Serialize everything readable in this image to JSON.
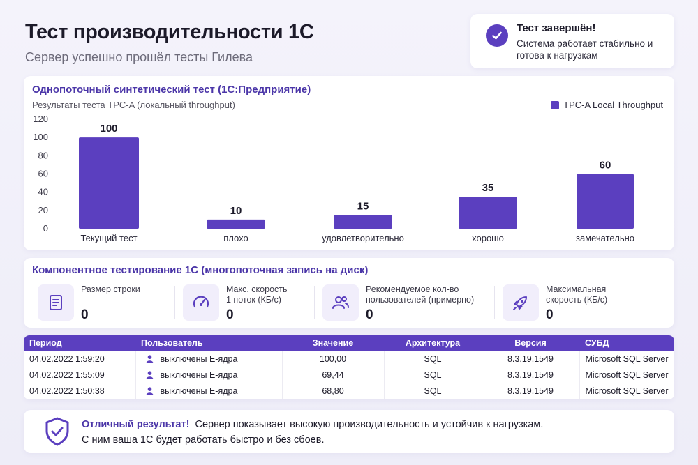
{
  "header": {
    "title": "Тест производительности 1С",
    "subtitle": "Сервер успешно прошёл тесты Гилева"
  },
  "status": {
    "title": "Тест завершён!",
    "text": "Система работает стабильно и готова к нагрузкам",
    "icon": "check-circle-icon"
  },
  "chart_section": {
    "title": "Однопоточный синтетический тест (1С:Предприятие)",
    "subtitle": "Результаты теста TPC-A (локальный throughput)"
  },
  "chart_data": {
    "type": "bar",
    "categories": [
      "Текущий тест",
      "плохо",
      "удовлетворительно",
      "хорошо",
      "замечательно"
    ],
    "series": [
      {
        "name": "TPC-A Local Throughput",
        "values": [
          100,
          10,
          15,
          35,
          60
        ]
      }
    ],
    "ylim": [
      0,
      120
    ],
    "yticks": [
      0,
      20,
      40,
      60,
      80,
      100,
      120
    ],
    "legend": "top-right",
    "color": "#5b3fbf",
    "grid": false
  },
  "component": {
    "title": "Компонентное тестирование 1С (многопоточная запись на диск)",
    "metrics": [
      {
        "icon": "document-icon",
        "label1": "Размер строки",
        "label2": "",
        "value": "0"
      },
      {
        "icon": "speedometer-icon",
        "label1": "Макс. скорость",
        "label2": "1 поток (КБ/с)",
        "value": "0"
      },
      {
        "icon": "users-icon",
        "label1": "Рекомендуемое кол-во",
        "label2": "пользователей (примерно)",
        "value": "0"
      },
      {
        "icon": "rocket-icon",
        "label1": "Максимальная",
        "label2": "скорость (КБ/с)",
        "value": "0"
      }
    ]
  },
  "table": {
    "headers": [
      "Период",
      "Пользователь",
      "Значение",
      "Архитектура",
      "Версия",
      "СУБД"
    ],
    "rows": [
      [
        "04.02.2022 1:59:20",
        "выключены Е-ядра",
        "100,00",
        "SQL",
        "8.3.19.1549",
        "Microsoft SQL Server"
      ],
      [
        "04.02.2022 1:55:09",
        "выключены Е-ядра",
        "69,44",
        "SQL",
        "8.3.19.1549",
        "Microsoft SQL Server"
      ],
      [
        "04.02.2022 1:50:38",
        "выключены Е-ядра",
        "68,80",
        "SQL",
        "8.3.19.1549",
        "Microsoft SQL Server"
      ]
    ]
  },
  "result": {
    "highlight": "Отличный результат!",
    "line1": "Сервер показывает высокую производительность и устойчив к нагрузкам.",
    "line2": "С ним ваша 1С будет работать быстро и без сбоев.",
    "icon": "shield-check-icon"
  },
  "colors": {
    "accent": "#5b3fbf",
    "heading": "#4b36a8"
  }
}
